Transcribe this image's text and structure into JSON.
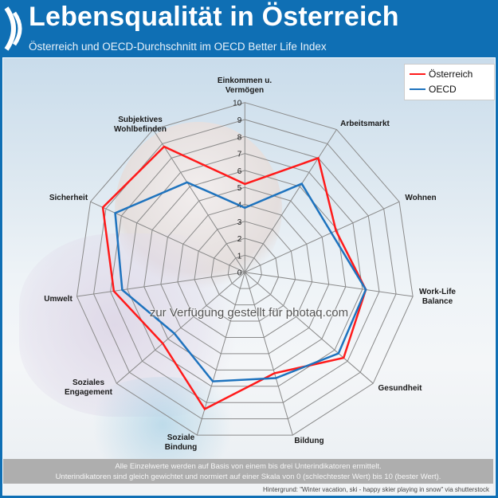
{
  "header": {
    "title": "Lebensqualität in Österreich",
    "subtitle": "Österreich und OECD-Durchschnitt im OECD Better Life Index"
  },
  "watermark": "zur Verfügung gestellt für photaq.com",
  "footer": {
    "note_line1": "Alle Einzelwerte werden auf Basis von einem bis drei Unterindikatoren ermittelt.",
    "note_line2": "Unterindikatoren sind gleich gewichtet und normiert auf einer  Skala von 0 (schlechtester Wert) bis 10 (bester Wert).",
    "credit": "Hintergrund: \"Winter vacation, ski - happy skier playing in snow\" via shutterstock"
  },
  "colors": {
    "header": "#0f6fb4",
    "oesterreich": "#ff1a1a",
    "oecd": "#1e73be",
    "grid": "#8a8a8a"
  },
  "chart_data": {
    "type": "radar",
    "categories": [
      "Einkommen u. Vermögen",
      "Arbeitsmarkt",
      "Wohnen",
      "Work-Life Balance",
      "Gesundheit",
      "Bildung",
      "Soziale Bindung",
      "Soziales Engagement",
      "Umwelt",
      "Sicherheit",
      "Subjektives Wohlbefinden"
    ],
    "category_lines": [
      [
        "Einkommen u.",
        "Vermögen"
      ],
      [
        "Arbeitsmarkt"
      ],
      [
        "Wohnen"
      ],
      [
        "Work-Life",
        "Balance"
      ],
      [
        "Gesundheit"
      ],
      [
        "Bildung"
      ],
      [
        "Soziale",
        "Bindung"
      ],
      [
        "Soziales",
        "Engagement"
      ],
      [
        "Umwelt"
      ],
      [
        "Sicherheit"
      ],
      [
        "Subjektives",
        "Wohlbefinden"
      ]
    ],
    "rlim": [
      0,
      10
    ],
    "ticks": [
      "0",
      "1",
      "2",
      "3",
      "4",
      "5",
      "6",
      "7",
      "8",
      "9",
      "10"
    ],
    "grid": true,
    "legend": "top-right",
    "series": [
      {
        "name": "Österreich",
        "color": "#ff1a1a",
        "values": [
          5.2,
          8.0,
          5.9,
          7.2,
          7.7,
          6.2,
          8.4,
          6.4,
          7.8,
          9.2,
          8.8
        ]
      },
      {
        "name": "OECD",
        "color": "#1e73be",
        "values": [
          3.8,
          6.2,
          5.6,
          7.2,
          7.3,
          6.5,
          6.7,
          5.5,
          7.3,
          8.4,
          6.3
        ]
      }
    ]
  }
}
